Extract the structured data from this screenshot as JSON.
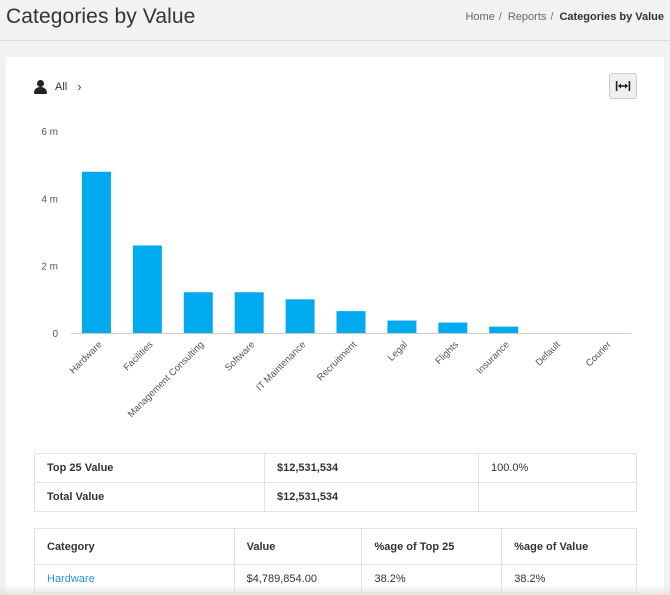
{
  "header": {
    "title": "Categories by Value",
    "breadcrumb": [
      {
        "label": "Home"
      },
      {
        "label": "Reports"
      },
      {
        "label": "Categories by Value"
      }
    ]
  },
  "filter": {
    "icon": "user-icon",
    "label": "All",
    "chevron": "›"
  },
  "expand_button": {
    "icon": "expand-horizontal-icon"
  },
  "chart_data": {
    "type": "bar",
    "categories": [
      "Hardware",
      "Facilities",
      "Management Consulting",
      "Software",
      "IT Maintenance",
      "Recruitment",
      "Legal",
      "Flights",
      "Insurance",
      "Default",
      "Courier"
    ],
    "values": [
      4789854,
      2600000,
      1210000,
      1210000,
      1000000,
      650000,
      370000,
      310000,
      190000,
      0,
      0
    ],
    "y_ticks": [
      {
        "value": 0,
        "label": "0"
      },
      {
        "value": 2000000,
        "label": "2 m"
      },
      {
        "value": 4000000,
        "label": "4 m"
      },
      {
        "value": 6000000,
        "label": "6 m"
      }
    ],
    "ylim": [
      0,
      6000000
    ],
    "color": "#00aaee",
    "grid": false
  },
  "summary": [
    {
      "label": "Top 25 Value",
      "value": "$12,531,534",
      "pct": "100.0%"
    },
    {
      "label": "Total Value",
      "value": "$12,531,534",
      "pct": ""
    }
  ],
  "detail": {
    "columns": [
      "Category",
      "Value",
      "%age of Top 25",
      "%age of Value"
    ],
    "rows": [
      {
        "category": "Hardware",
        "value": "$4,789,854.00",
        "pct_top": "38.2%",
        "pct_value": "38.2%"
      }
    ]
  }
}
